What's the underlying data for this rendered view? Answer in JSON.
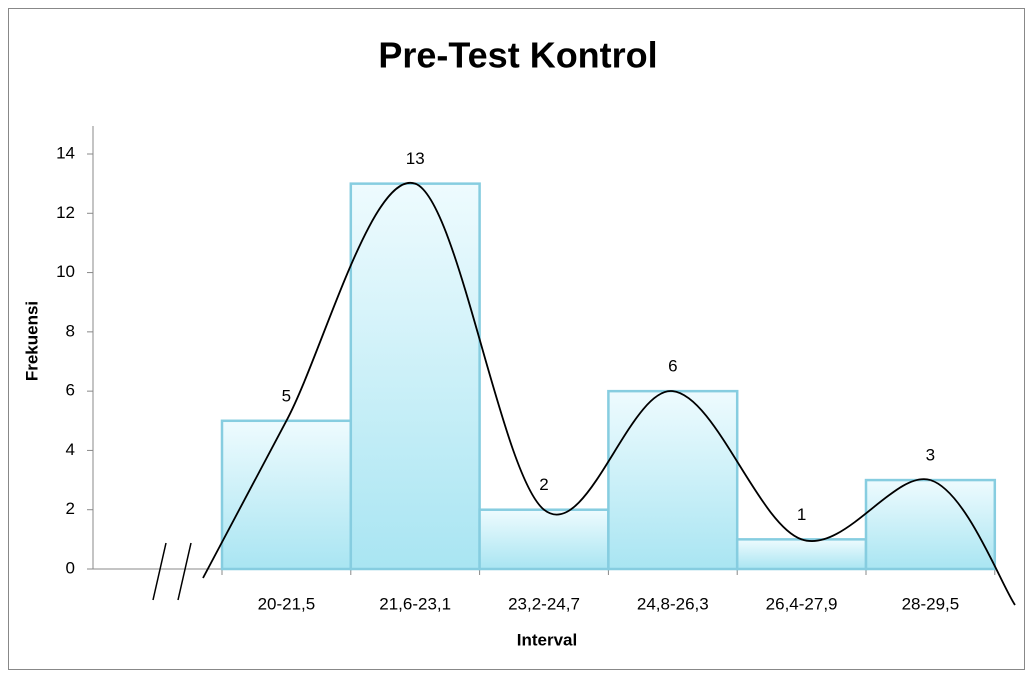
{
  "chart_data": {
    "type": "bar",
    "title": "Pre-Test Kontrol",
    "x_label": "Interval",
    "y_label": "Frekuensi",
    "categories": [
      "20-21,5",
      "21,6-23,1",
      "23,2-24,7",
      "24,8-26,3",
      "26,4-27,9",
      "28-29,5"
    ],
    "values": [
      5,
      13,
      2,
      6,
      1,
      3
    ],
    "color": "#bfeef8",
    "ylim": [
      0,
      14
    ],
    "yticks": [
      0,
      2,
      4,
      6,
      8,
      10,
      12,
      14
    ],
    "data_labels": true,
    "smooth_line": true,
    "axis_break": true
  }
}
